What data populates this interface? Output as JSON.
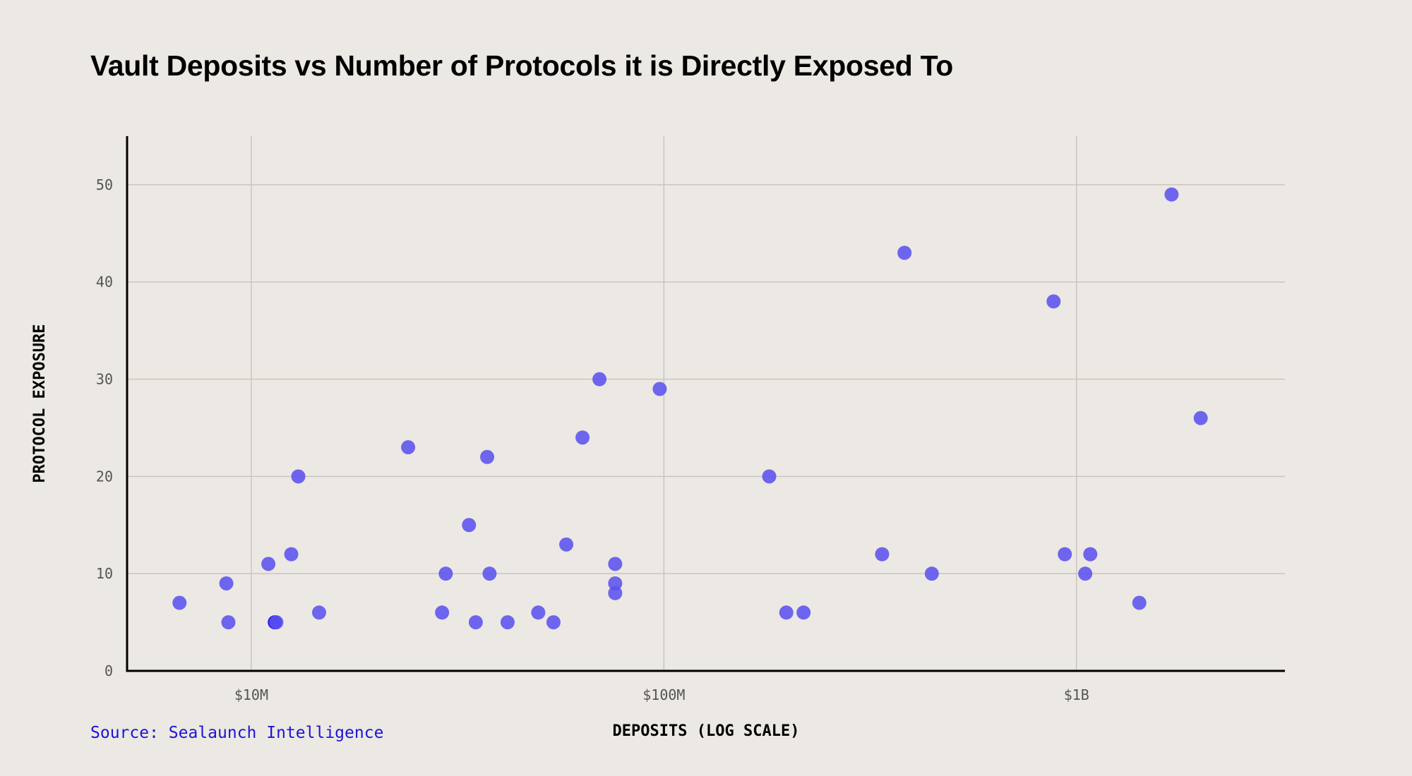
{
  "title": "Vault Deposits vs Number of Protocols it is Directly Exposed To",
  "source": "Source: Sealaunch Intelligence",
  "colors": {
    "background": "#ece8e3",
    "point": "#5b52ee",
    "point_highlight": "#2e1ef0",
    "grid": "#c9c5c0",
    "axis": "#000000",
    "source_text": "#1a14d6"
  },
  "chart_data": {
    "type": "scatter",
    "title": "Vault Deposits vs Number of Protocols it is Directly Exposed To",
    "xlabel": "DEPOSITS (LOG SCALE)",
    "ylabel": "PROTOCOL EXPOSURE",
    "x_scale": "log",
    "xlim": [
      5000000,
      3200000000
    ],
    "ylim": [
      0,
      55
    ],
    "x_ticks": [
      {
        "value": 10000000,
        "label": "$10M"
      },
      {
        "value": 100000000,
        "label": "$100M"
      },
      {
        "value": 1000000000,
        "label": "$1B"
      }
    ],
    "y_ticks": [
      {
        "value": 0,
        "label": "0"
      },
      {
        "value": 10,
        "label": "10"
      },
      {
        "value": 20,
        "label": "20"
      },
      {
        "value": 30,
        "label": "30"
      },
      {
        "value": 40,
        "label": "40"
      },
      {
        "value": 50,
        "label": "50"
      }
    ],
    "grid": true,
    "points": [
      {
        "x": 6700000,
        "y": 7
      },
      {
        "x": 8700000,
        "y": 9
      },
      {
        "x": 8800000,
        "y": 5
      },
      {
        "x": 11000000,
        "y": 11
      },
      {
        "x": 11400000,
        "y": 5
      },
      {
        "x": 11500000,
        "y": 5
      },
      {
        "x": 12500000,
        "y": 12
      },
      {
        "x": 13000000,
        "y": 20
      },
      {
        "x": 14600000,
        "y": 6
      },
      {
        "x": 24000000,
        "y": 23
      },
      {
        "x": 29000000,
        "y": 6
      },
      {
        "x": 29600000,
        "y": 10
      },
      {
        "x": 33700000,
        "y": 15
      },
      {
        "x": 35000000,
        "y": 5
      },
      {
        "x": 37300000,
        "y": 22
      },
      {
        "x": 37800000,
        "y": 10
      },
      {
        "x": 41800000,
        "y": 5
      },
      {
        "x": 49600000,
        "y": 6
      },
      {
        "x": 54000000,
        "y": 5
      },
      {
        "x": 58000000,
        "y": 13
      },
      {
        "x": 63500000,
        "y": 24
      },
      {
        "x": 69800000,
        "y": 30
      },
      {
        "x": 76200000,
        "y": 11
      },
      {
        "x": 76200000,
        "y": 9
      },
      {
        "x": 76200000,
        "y": 8
      },
      {
        "x": 97700000,
        "y": 29
      },
      {
        "x": 180000000,
        "y": 20
      },
      {
        "x": 198000000,
        "y": 6
      },
      {
        "x": 218000000,
        "y": 6
      },
      {
        "x": 338000000,
        "y": 12
      },
      {
        "x": 383000000,
        "y": 43
      },
      {
        "x": 446000000,
        "y": 10
      },
      {
        "x": 880000000,
        "y": 38
      },
      {
        "x": 937000000,
        "y": 12
      },
      {
        "x": 1050000000,
        "y": 10
      },
      {
        "x": 1080000000,
        "y": 12
      },
      {
        "x": 1420000000,
        "y": 7
      },
      {
        "x": 1700000000,
        "y": 49
      },
      {
        "x": 2000000000,
        "y": 26
      }
    ]
  }
}
